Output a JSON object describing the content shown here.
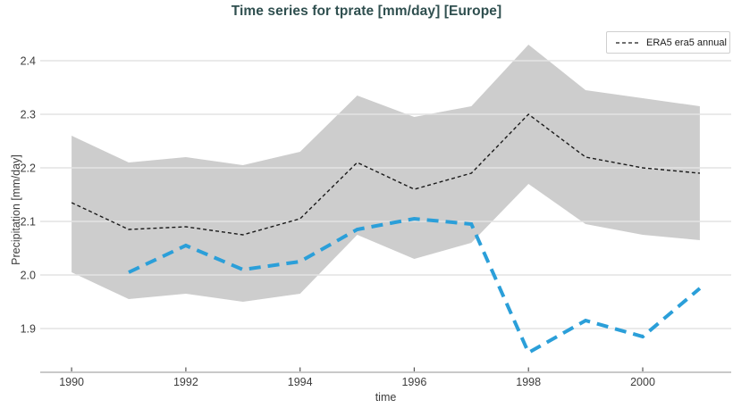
{
  "title": "Time series for tprate [mm/day] [Europe]",
  "legend": {
    "items": [
      {
        "label": "ERA5 era5 annual",
        "line_style": "black-dashed"
      }
    ]
  },
  "colors": {
    "title": "#2f4f4f",
    "band": "#cdcdcd",
    "era5_line": "#1a1a1a",
    "highlight_line": "#2b9fd9",
    "gridline": "#e4e4e4",
    "spine": "#c9c9c9",
    "tick_mark": "#555555",
    "tick_label": "#3d3d3d"
  },
  "chart_data": {
    "type": "line",
    "title": "Time series for tprate [mm/day] [Europe]",
    "xlabel": "time",
    "ylabel": "Precipitation [mm/day]",
    "grid": "horizontal",
    "legend_position": "upper right",
    "xlim": [
      1989.45,
      2001.55
    ],
    "ylim": [
      1.8183,
      2.4467
    ],
    "x_ticks": [
      1990,
      1992,
      1994,
      1996,
      1998,
      2000
    ],
    "y_ticks": [
      1.9,
      2.0,
      2.1,
      2.2,
      2.3,
      2.4
    ],
    "x": [
      1990,
      1991,
      1992,
      1993,
      1994,
      1995,
      1996,
      1997,
      1998,
      1999,
      2000,
      2001
    ],
    "series": [
      {
        "name": "ERA5 era5 annual",
        "style": "dashed-thin",
        "color": "#1a1a1a",
        "values": [
          2.135,
          2.085,
          2.09,
          2.075,
          2.105,
          2.21,
          2.16,
          2.19,
          2.3,
          2.22,
          2.2,
          2.19
        ]
      },
      {
        "name": "highlighted annual series (blue, no legend entry)",
        "style": "dashed-thick",
        "color": "#2b9fd9",
        "values": [
          null,
          2.005,
          2.055,
          2.01,
          2.025,
          2.085,
          2.105,
          2.095,
          1.855,
          1.915,
          1.885,
          1.975
        ]
      }
    ],
    "band": {
      "name": "shaded spread around ERA5 annual",
      "color": "#cdcdcd",
      "low": [
        2.005,
        1.955,
        1.965,
        1.95,
        1.965,
        2.075,
        2.03,
        2.06,
        2.17,
        2.095,
        2.075,
        2.065
      ],
      "high": [
        2.26,
        2.21,
        2.22,
        2.205,
        2.23,
        2.335,
        2.295,
        2.315,
        2.43,
        2.345,
        2.33,
        2.315
      ]
    }
  }
}
